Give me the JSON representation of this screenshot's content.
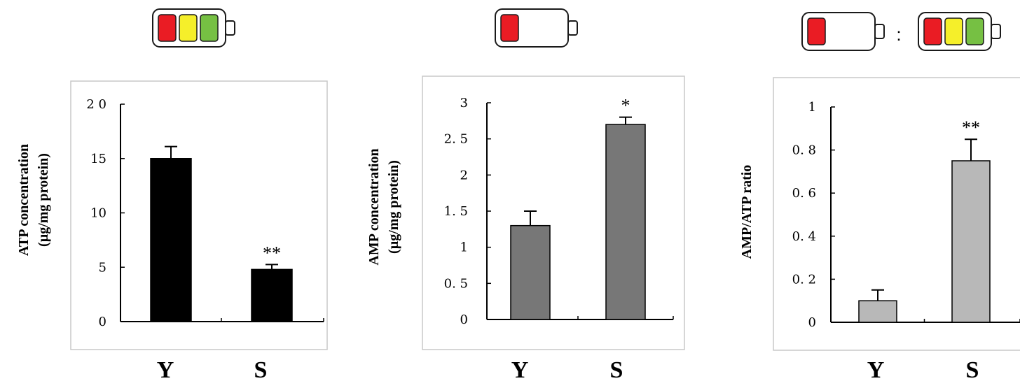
{
  "colors": {
    "battery_red": "#ea1c24",
    "battery_yellow": "#f5ef2a",
    "battery_green": "#76c043",
    "battery_outline": "#1a1a1a",
    "frame": "#c8c8c8",
    "axis": "#000000"
  },
  "icons": {
    "panel1": [
      "battery-full-icon"
    ],
    "panel2": [
      "battery-low-icon"
    ],
    "panel3": [
      "battery-low-icon",
      "battery-full-icon"
    ],
    "ratio_separator": ":"
  },
  "chart_data": [
    {
      "type": "bar",
      "title": "",
      "xlabel": "",
      "ylabel": [
        "ATP concentration",
        "(µg/mg protein)"
      ],
      "ylim": [
        0,
        20
      ],
      "yticks": [
        0,
        5,
        10,
        15,
        20
      ],
      "ytick_labels": [
        "0",
        "5",
        "10",
        "15",
        "2 0"
      ],
      "categories": [
        "Y",
        "S"
      ],
      "values": [
        15.0,
        4.8
      ],
      "errors": [
        1.1,
        0.45
      ],
      "significance": [
        "",
        "**"
      ],
      "bar_color": "#000000",
      "grid": false,
      "battery": [
        "full"
      ]
    },
    {
      "type": "bar",
      "title": "",
      "xlabel": "",
      "ylabel": [
        "AMP concentration",
        "(µg/mg protein)"
      ],
      "ylim": [
        0,
        3
      ],
      "yticks": [
        0,
        0.5,
        1,
        1.5,
        2,
        2.5,
        3
      ],
      "ytick_labels": [
        "0",
        "0. 5",
        "1",
        "1. 5",
        "2",
        "2. 5",
        "3"
      ],
      "categories": [
        "Y",
        "S"
      ],
      "values": [
        1.3,
        2.7
      ],
      "errors": [
        0.2,
        0.1
      ],
      "significance": [
        "",
        "*"
      ],
      "bar_color": "#777777",
      "grid": false,
      "battery": [
        "low"
      ]
    },
    {
      "type": "bar",
      "title": "",
      "xlabel": "",
      "ylabel": [
        "AMP/ATP ratio"
      ],
      "ylim": [
        0,
        1
      ],
      "yticks": [
        0,
        0.2,
        0.4,
        0.6,
        0.8,
        1
      ],
      "ytick_labels": [
        "0",
        "0. 2",
        "0. 4",
        "0. 6",
        "0. 8",
        "1"
      ],
      "categories": [
        "Y",
        "S"
      ],
      "values": [
        0.1,
        0.75
      ],
      "errors": [
        0.05,
        0.1
      ],
      "significance": [
        "",
        "**"
      ],
      "bar_color": "#b8b8b8",
      "grid": false,
      "battery": [
        "low",
        "full"
      ]
    }
  ]
}
